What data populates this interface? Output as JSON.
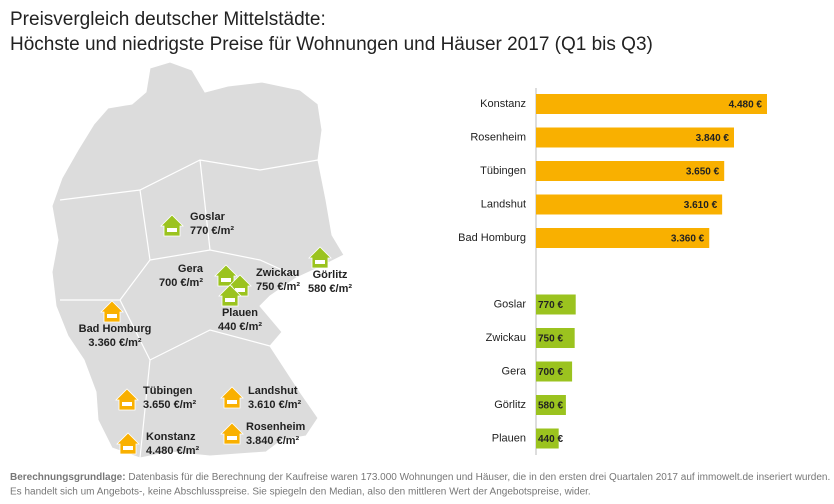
{
  "title": [
    "Preisvergleich deutscher Mittelstädte:",
    "Höchste und niedrigste Preise für Wohnungen und Häuser 2017 (Q1 bis Q3)"
  ],
  "map": {
    "cities": [
      {
        "name": "Goslar",
        "price": "770 €/m²",
        "color": "#9bc31f"
      },
      {
        "name": "Gera",
        "price": "700 €/m²",
        "color": "#9bc31f"
      },
      {
        "name": "Zwickau",
        "price": "750 €/m²",
        "color": "#9bc31f"
      },
      {
        "name": "Plauen",
        "price": "440 €/m²",
        "color": "#9bc31f"
      },
      {
        "name": "Görlitz",
        "price": "580 €/m²",
        "color": "#9bc31f"
      },
      {
        "name": "Bad Homburg",
        "price": "3.360 €/m²",
        "color": "#f9b000"
      },
      {
        "name": "Tübingen",
        "price": "3.650 €/m²",
        "color": "#f9b000"
      },
      {
        "name": "Landshut",
        "price": "3.610 €/m²",
        "color": "#f9b000"
      },
      {
        "name": "Konstanz",
        "price": "4.480 €/m²",
        "color": "#f9b000"
      },
      {
        "name": "Rosenheim",
        "price": "3.840 €/m²",
        "color": "#f9b000"
      }
    ]
  },
  "chart_data": {
    "type": "bar",
    "orientation": "horizontal",
    "categories": [
      "Konstanz",
      "Rosenheim",
      "Tübingen",
      "Landshut",
      "Bad Homburg",
      "Goslar",
      "Zwickau",
      "Gera",
      "Görlitz",
      "Plauen"
    ],
    "values": [
      4480,
      3840,
      3650,
      3610,
      3360,
      770,
      750,
      700,
      580,
      440
    ],
    "value_labels": [
      "4.480 €",
      "3.840 €",
      "3.650 €",
      "3.610 €",
      "3.360 €",
      "770 €",
      "750 €",
      "700 €",
      "580 €",
      "440 €"
    ],
    "colors": [
      "#f9b000",
      "#f9b000",
      "#f9b000",
      "#f9b000",
      "#f9b000",
      "#9bc31f",
      "#9bc31f",
      "#9bc31f",
      "#9bc31f",
      "#9bc31f"
    ]
  },
  "footnote": {
    "label": "Berechnungsgrundlage:",
    "text": [
      "Datenbasis für die Berechnung der Kaufreise waren 173.000  Wohnungen und Häuser, die in den ersten drei Quartalen 2017 auf immowelt.de inseriert wurden.",
      "Es handelt sich um Angebots-, keine Abschlusspreise. Sie spiegeln den Median, also den mittleren Wert der Angebotspreise, wider."
    ]
  }
}
